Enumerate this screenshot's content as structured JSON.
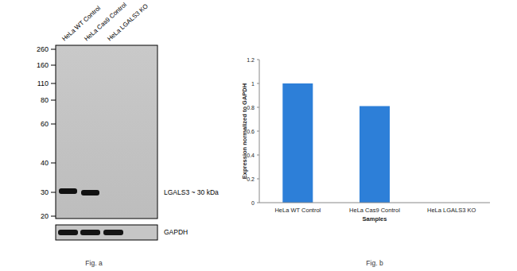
{
  "chart_data": {
    "type": "bar",
    "categories": [
      "HeLa WT Control",
      "HeLa Cas9 Control",
      "HeLa LGALS3 KO"
    ],
    "values": [
      1,
      0.81,
      0
    ],
    "color": "#2d7fd8",
    "xlabel": "Samples",
    "ylabel": "Expression  normalized to GAPDH",
    "ylim": [
      0,
      1.2
    ],
    "yticks": [
      0,
      0.2,
      0.4,
      0.6,
      0.8,
      1,
      1.2
    ],
    "grid": false,
    "caption": "Fig. b"
  },
  "blot": {
    "lanes": [
      "HeLa WT Control",
      "HeLa Cas9 Control",
      "HeLa LGALS3 KO"
    ],
    "markers": [
      260,
      160,
      110,
      80,
      60,
      40,
      30,
      20
    ],
    "target_label": "LGALS3 ~ 30 kDa",
    "target_band": [
      true,
      true,
      false
    ],
    "loading_label": "GAPDH",
    "caption": "Fig. a"
  }
}
